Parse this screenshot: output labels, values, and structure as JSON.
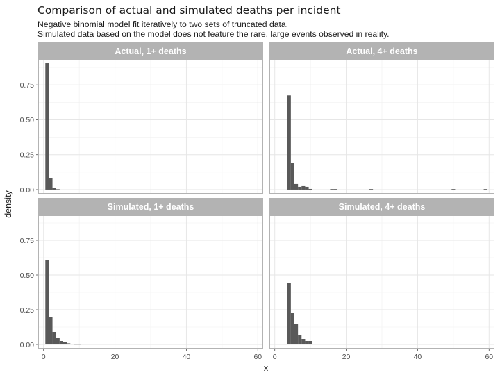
{
  "chart_data": {
    "type": "bar",
    "title": "Comparison of actual and simulated deaths per incident",
    "subtitle_lines": [
      "Negative binomial model fit iteratively to two sets of truncated data.",
      "Simulated data based on the model does not feature the rare, large events observed in reality."
    ],
    "xlabel": "x",
    "ylabel": "density",
    "xlim": [
      -1.5,
      61.5
    ],
    "ylim": [
      -0.03,
      0.93
    ],
    "bin_width": 1,
    "x_ticks": [
      0,
      20,
      40,
      60
    ],
    "x_tick_labels": [
      "0",
      "20",
      "40",
      "60"
    ],
    "y_ticks": [
      0,
      0.25,
      0.5,
      0.75
    ],
    "y_tick_labels": [
      "0.00",
      "0.25",
      "0.50",
      "0.75"
    ],
    "grid": true,
    "bar_color": "#595959",
    "panels": [
      {
        "label": "Actual, 1+ deaths",
        "bins": [
          {
            "x": 1,
            "y": 0.905
          },
          {
            "x": 2,
            "y": 0.08
          },
          {
            "x": 3,
            "y": 0.01
          },
          {
            "x": 4,
            "y": 0.003
          }
        ]
      },
      {
        "label": "Actual, 4+ deaths",
        "bins": [
          {
            "x": 4,
            "y": 0.675
          },
          {
            "x": 5,
            "y": 0.19
          },
          {
            "x": 6,
            "y": 0.04
          },
          {
            "x": 7,
            "y": 0.02
          },
          {
            "x": 8,
            "y": 0.025
          },
          {
            "x": 9,
            "y": 0.02
          },
          {
            "x": 10,
            "y": 0.005
          },
          {
            "x": 16,
            "y": 0.004
          },
          {
            "x": 17,
            "y": 0.004
          },
          {
            "x": 27,
            "y": 0.004
          },
          {
            "x": 50,
            "y": 0.004
          },
          {
            "x": 59,
            "y": 0.004
          }
        ]
      },
      {
        "label": "Simulated, 1+ deaths",
        "bins": [
          {
            "x": 1,
            "y": 0.605
          },
          {
            "x": 2,
            "y": 0.2
          },
          {
            "x": 3,
            "y": 0.09
          },
          {
            "x": 4,
            "y": 0.045
          },
          {
            "x": 5,
            "y": 0.025
          },
          {
            "x": 6,
            "y": 0.015
          },
          {
            "x": 7,
            "y": 0.008
          },
          {
            "x": 8,
            "y": 0.004
          },
          {
            "x": 9,
            "y": 0.002
          },
          {
            "x": 10,
            "y": 0.002
          }
        ]
      },
      {
        "label": "Simulated, 4+ deaths",
        "bins": [
          {
            "x": 4,
            "y": 0.44
          },
          {
            "x": 5,
            "y": 0.23
          },
          {
            "x": 6,
            "y": 0.145
          },
          {
            "x": 7,
            "y": 0.07
          },
          {
            "x": 8,
            "y": 0.04
          },
          {
            "x": 9,
            "y": 0.025
          },
          {
            "x": 10,
            "y": 0.025
          },
          {
            "x": 11,
            "y": 0.003
          },
          {
            "x": 12,
            "y": 0.003
          },
          {
            "x": 13,
            "y": 0.003
          }
        ]
      }
    ]
  }
}
